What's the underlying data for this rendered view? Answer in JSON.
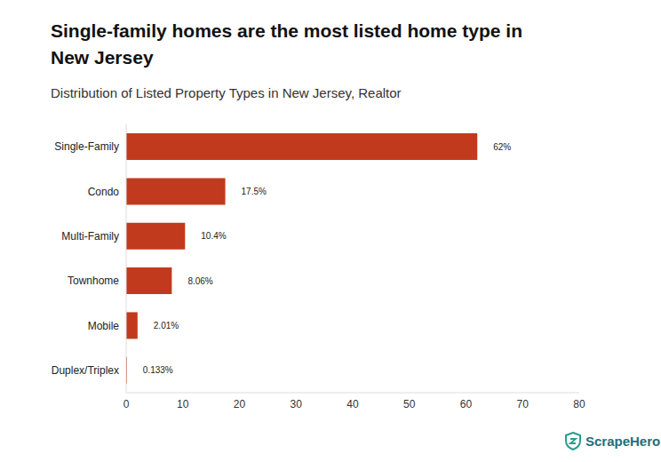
{
  "chart_data": {
    "type": "bar",
    "title": "Single-family homes are the most listed home type in New Jersey",
    "subtitle": "Distribution of Listed Property Types in New Jersey, Realtor",
    "orientation": "horizontal",
    "categories": [
      "Single-Family",
      "Condo",
      "Multi-Family",
      "Townhome",
      "Mobile",
      "Duplex/Triplex"
    ],
    "values": [
      62,
      17.5,
      10.4,
      8.06,
      2.01,
      0.133
    ],
    "value_labels": [
      "62%",
      "17.5%",
      "10.4%",
      "8.06%",
      "2.01%",
      "0.133%"
    ],
    "data_labels": true,
    "color": "#c23a1e",
    "xlim": [
      0,
      80
    ],
    "xticks": [
      0,
      10,
      20,
      30,
      40,
      50,
      60,
      70,
      80
    ],
    "grid": false,
    "annotations": [
      "ScrapeHero"
    ]
  }
}
